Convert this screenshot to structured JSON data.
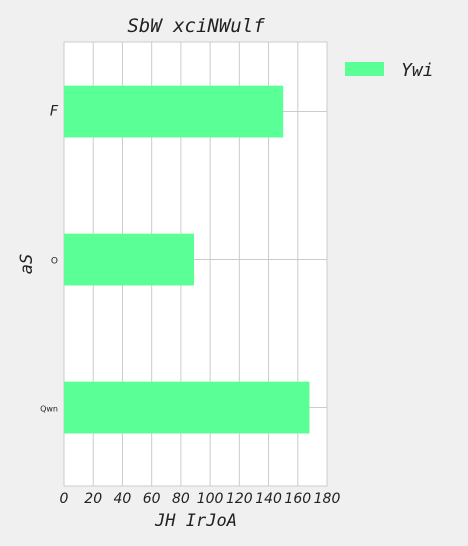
{
  "chart_data": {
    "type": "bar",
    "orientation": "horizontal",
    "title": "SbW xciNWulf",
    "xlabel": "JH IrJoA",
    "ylabel": "aS",
    "categories": [
      "F",
      "O",
      "Qwn"
    ],
    "series": [
      {
        "name": "Ywi",
        "values": [
          150,
          89,
          168
        ]
      }
    ],
    "xlim": [
      0,
      180
    ],
    "xticks": [
      0,
      20,
      40,
      60,
      80,
      100,
      120,
      140,
      160,
      180
    ],
    "grid": true,
    "legend_position": "top-right",
    "colors": {
      "bar": "#5aff96",
      "grid": "#cccccc",
      "plot_bg": "#ffffff",
      "page_bg": "#f0f0f0"
    }
  }
}
